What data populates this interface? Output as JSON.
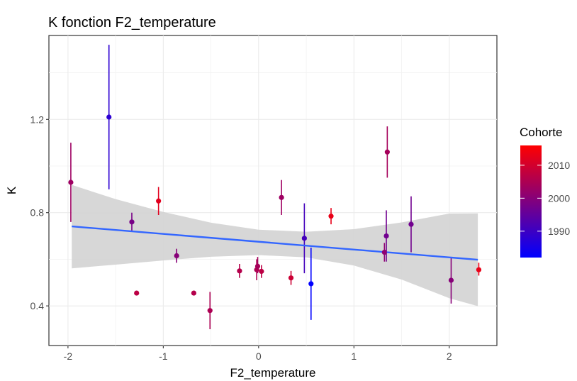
{
  "chart_data": {
    "type": "scatter",
    "title": "K fonction F2_temperature",
    "xlabel": "F2_temperature",
    "ylabel": "K",
    "xlim": [
      -2.2,
      2.5
    ],
    "ylim": [
      0.23,
      1.56
    ],
    "x_ticks": [
      -2,
      -1,
      0,
      1,
      2
    ],
    "x_tick_labels": [
      "-2",
      "-1",
      "0",
      "1",
      "2"
    ],
    "y_ticks": [
      0.4,
      0.8,
      1.2
    ],
    "y_tick_labels": [
      "0.4",
      "0.8",
      "1.2"
    ],
    "x_minor_ticks": [
      -1.5,
      -0.5,
      0.5,
      1.5
    ],
    "y_minor_ticks": [
      0.6,
      1.0,
      1.4
    ],
    "grid": true,
    "legend": {
      "title": "Cohorte",
      "position": "right",
      "labels": [
        "2010",
        "2000",
        "1990"
      ],
      "label_values": [
        2010,
        2000,
        1990
      ],
      "range": [
        1982,
        2016
      ],
      "low_color": "#0000ff",
      "high_color": "#ff0000"
    },
    "regression": {
      "x": [
        -1.96,
        2.3
      ],
      "y": [
        0.741,
        0.598
      ],
      "ci_x": [
        -1.96,
        -1.5,
        -1.0,
        -0.5,
        0.0,
        0.5,
        1.0,
        1.5,
        2.0,
        2.3
      ],
      "ci_upper": [
        0.919,
        0.858,
        0.803,
        0.757,
        0.727,
        0.718,
        0.729,
        0.758,
        0.796,
        0.797
      ],
      "ci_lower": [
        0.561,
        0.577,
        0.595,
        0.611,
        0.618,
        0.608,
        0.573,
        0.513,
        0.433,
        0.399
      ],
      "line_color": "#3366ff",
      "band_color": "#d3d3d3"
    },
    "points": [
      {
        "x": -1.97,
        "y": 0.93,
        "ymin": 0.76,
        "ymax": 1.1,
        "cohort": 2003
      },
      {
        "x": -1.57,
        "y": 1.21,
        "ymin": 0.9,
        "ymax": 1.52,
        "cohort": 1988
      },
      {
        "x": -1.33,
        "y": 0.76,
        "ymin": 0.72,
        "ymax": 0.8,
        "cohort": 1998
      },
      {
        "x": -1.28,
        "y": 0.455,
        "ymin": 0.455,
        "ymax": 0.455,
        "cohort": 2007
      },
      {
        "x": -1.05,
        "y": 0.85,
        "ymin": 0.79,
        "ymax": 0.91,
        "cohort": 2012
      },
      {
        "x": -0.86,
        "y": 0.615,
        "ymin": 0.585,
        "ymax": 0.645,
        "cohort": 2000
      },
      {
        "x": -0.68,
        "y": 0.455,
        "ymin": 0.445,
        "ymax": 0.465,
        "cohort": 2006
      },
      {
        "x": -0.51,
        "y": 0.38,
        "ymin": 0.3,
        "ymax": 0.46,
        "cohort": 2005
      },
      {
        "x": -0.2,
        "y": 0.55,
        "ymin": 0.52,
        "ymax": 0.58,
        "cohort": 2006
      },
      {
        "x": -0.02,
        "y": 0.555,
        "ymin": 0.51,
        "ymax": 0.6,
        "cohort": 2005
      },
      {
        "x": -0.01,
        "y": 0.57,
        "ymin": 0.54,
        "ymax": 0.61,
        "cohort": 2004
      },
      {
        "x": 0.03,
        "y": 0.548,
        "ymin": 0.52,
        "ymax": 0.575,
        "cohort": 2007
      },
      {
        "x": 0.24,
        "y": 0.865,
        "ymin": 0.79,
        "ymax": 0.94,
        "cohort": 2003
      },
      {
        "x": 0.34,
        "y": 0.52,
        "ymin": 0.49,
        "ymax": 0.55,
        "cohort": 2009
      },
      {
        "x": 0.48,
        "y": 0.69,
        "ymin": 0.54,
        "ymax": 0.84,
        "cohort": 1991
      },
      {
        "x": 0.55,
        "y": 0.495,
        "ymin": 0.34,
        "ymax": 0.65,
        "cohort": 1982
      },
      {
        "x": 0.76,
        "y": 0.785,
        "ymin": 0.75,
        "ymax": 0.82,
        "cohort": 2013
      },
      {
        "x": 1.32,
        "y": 0.63,
        "ymin": 0.59,
        "ymax": 0.67,
        "cohort": 2001
      },
      {
        "x": 1.34,
        "y": 0.7,
        "ymin": 0.59,
        "ymax": 0.81,
        "cohort": 1997
      },
      {
        "x": 1.35,
        "y": 1.06,
        "ymin": 0.95,
        "ymax": 1.17,
        "cohort": 2004
      },
      {
        "x": 1.6,
        "y": 0.75,
        "ymin": 0.63,
        "ymax": 0.87,
        "cohort": 1997
      },
      {
        "x": 2.02,
        "y": 0.51,
        "ymin": 0.41,
        "ymax": 0.61,
        "cohort": 2000
      },
      {
        "x": 2.31,
        "y": 0.555,
        "ymin": 0.53,
        "ymax": 0.585,
        "cohort": 2013
      }
    ]
  }
}
